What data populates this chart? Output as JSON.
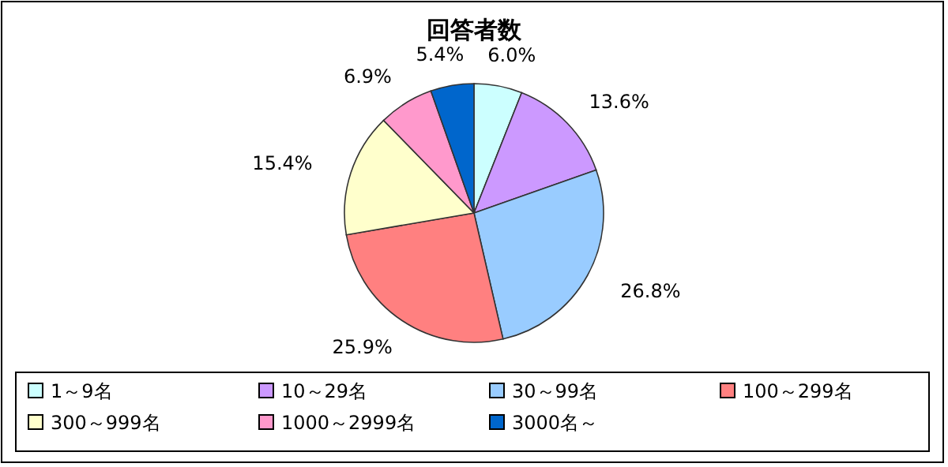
{
  "chart_data": {
    "type": "pie",
    "title": "回答者数",
    "categories": [
      "1～9名",
      "10～29名",
      "30～99名",
      "100～299名",
      "300～999名",
      "1000～2999名",
      "3000名～"
    ],
    "values": [
      6.0,
      13.6,
      26.8,
      25.9,
      15.4,
      6.9,
      5.4
    ],
    "value_labels": [
      "6.0%",
      "13.6%",
      "26.8%",
      "25.9%",
      "15.4%",
      "6.9%",
      "5.4%"
    ],
    "colors": [
      "#ccffff",
      "#cc99ff",
      "#99ccff",
      "#ff8080",
      "#ffffcc",
      "#ff99cc",
      "#0066cc"
    ],
    "legend": "bottom"
  }
}
